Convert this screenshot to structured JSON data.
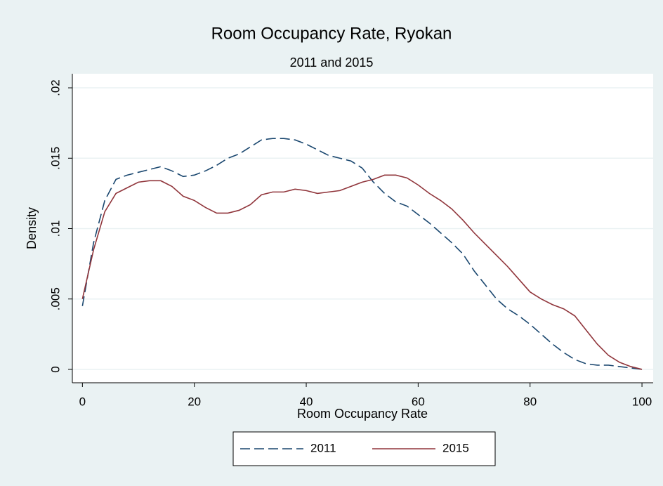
{
  "chart_data": {
    "type": "line",
    "title": "Room Occupancy Rate, Ryokan",
    "subtitle": "2011 and 2015",
    "x_label": "Room Occupancy Rate",
    "y_label": "Density",
    "x": [
      0,
      2,
      4,
      6,
      8,
      10,
      12,
      14,
      16,
      18,
      20,
      22,
      24,
      26,
      28,
      30,
      32,
      34,
      36,
      38,
      40,
      42,
      44,
      46,
      48,
      50,
      52,
      54,
      56,
      58,
      60,
      62,
      64,
      66,
      68,
      70,
      72,
      74,
      76,
      78,
      80,
      82,
      84,
      86,
      88,
      90,
      92,
      94,
      96,
      98,
      100
    ],
    "series": [
      {
        "name": "2011",
        "color": "#1a476f",
        "dash": true,
        "values": [
          0.0045,
          0.009,
          0.012,
          0.0135,
          0.0138,
          0.014,
          0.0142,
          0.0144,
          0.0141,
          0.0137,
          0.0138,
          0.0141,
          0.0145,
          0.015,
          0.0153,
          0.0158,
          0.0163,
          0.0164,
          0.0164,
          0.0163,
          0.016,
          0.0156,
          0.0152,
          0.015,
          0.0148,
          0.0143,
          0.0133,
          0.0125,
          0.0119,
          0.0116,
          0.011,
          0.0104,
          0.0097,
          0.009,
          0.0082,
          0.007,
          0.006,
          0.005,
          0.0043,
          0.0038,
          0.0032,
          0.0025,
          0.0018,
          0.0012,
          0.0007,
          0.0004,
          0.0003,
          0.0003,
          0.0002,
          0.0001,
          0.0
        ]
      },
      {
        "name": "2015",
        "color": "#90353b",
        "dash": false,
        "values": [
          0.005,
          0.0085,
          0.0112,
          0.0125,
          0.0129,
          0.0133,
          0.0134,
          0.0134,
          0.013,
          0.0123,
          0.012,
          0.0115,
          0.0111,
          0.0111,
          0.0113,
          0.0117,
          0.0124,
          0.0126,
          0.0126,
          0.0128,
          0.0127,
          0.0125,
          0.0126,
          0.0127,
          0.013,
          0.0133,
          0.0135,
          0.0138,
          0.0138,
          0.0136,
          0.0131,
          0.0125,
          0.012,
          0.0114,
          0.0106,
          0.0097,
          0.0089,
          0.0081,
          0.0073,
          0.0064,
          0.0055,
          0.005,
          0.0046,
          0.0043,
          0.0038,
          0.0028,
          0.0018,
          0.001,
          0.0005,
          0.0002,
          0.0
        ]
      }
    ],
    "xlim": [
      -1.8,
      102
    ],
    "ylim": [
      -0.00095,
      0.021
    ],
    "xticks": [
      0,
      20,
      40,
      60,
      80,
      100
    ],
    "yticks": [
      0,
      {
        "value": 0.005,
        "label": ".005"
      },
      {
        "value": 0.01,
        "label": ".01"
      },
      {
        "value": 0.015,
        "label": ".015"
      },
      {
        "value": 0.02,
        "label": ".02"
      }
    ],
    "grid": true,
    "legend": "bottom"
  }
}
